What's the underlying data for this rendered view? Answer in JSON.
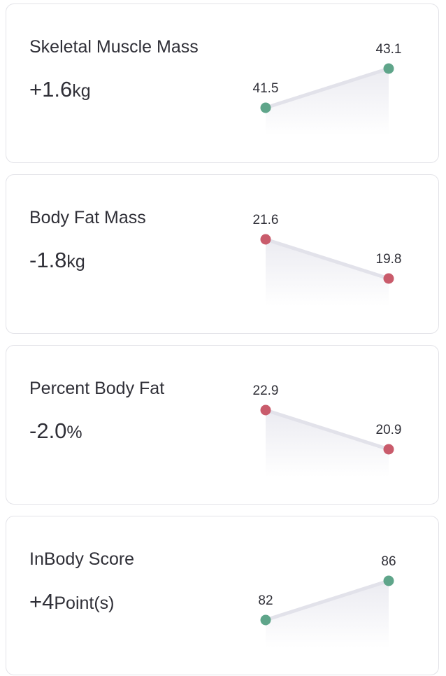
{
  "colors": {
    "increase": "#5fa58a",
    "decrease": "#c95b6b",
    "line": "#e2e2ea",
    "area_top": "#ebebf1",
    "area_bottom": "#ffffff"
  },
  "cards": [
    {
      "title": "Skeletal Muscle Mass",
      "delta_value": "+1.6",
      "delta_unit": "kg",
      "trend": "increase",
      "start_label": "41.5",
      "end_label": "43.1",
      "start_value": 41.5,
      "end_value": 43.1
    },
    {
      "title": "Body Fat Mass",
      "delta_value": "-1.8",
      "delta_unit": "kg",
      "trend": "decrease",
      "start_label": "21.6",
      "end_label": "19.8",
      "start_value": 21.6,
      "end_value": 19.8
    },
    {
      "title": "Percent Body Fat",
      "delta_value": "-2.0",
      "delta_unit": "%",
      "trend": "decrease",
      "start_label": "22.9",
      "end_label": "20.9",
      "start_value": 22.9,
      "end_value": 20.9
    },
    {
      "title": "InBody Score",
      "delta_value": "+4",
      "delta_unit": "Point(s)",
      "trend": "increase",
      "start_label": "82",
      "end_label": "86",
      "start_value": 82,
      "end_value": 86
    }
  ]
}
